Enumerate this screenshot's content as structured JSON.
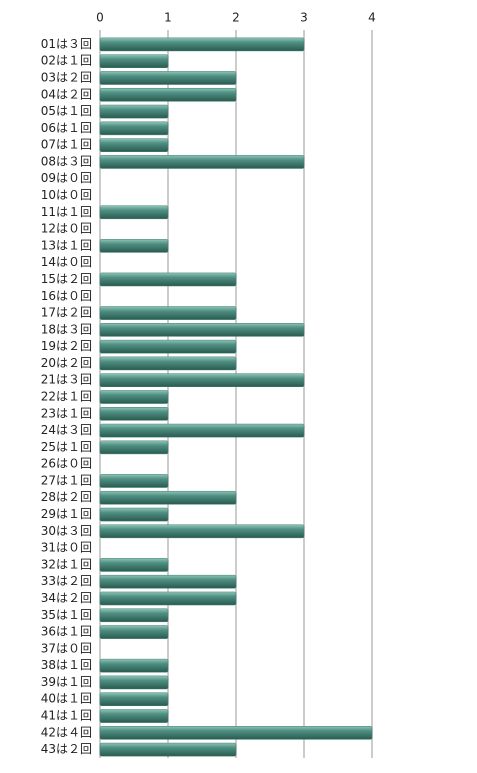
{
  "chart_data": {
    "type": "bar",
    "orientation": "horizontal",
    "categories": [
      "01は３回",
      "02は１回",
      "03は２回",
      "04は２回",
      "05は１回",
      "06は１回",
      "07は１回",
      "08は３回",
      "09は０回",
      "10は０回",
      "11は１回",
      "12は０回",
      "13は１回",
      "14は０回",
      "15は２回",
      "16は０回",
      "17は２回",
      "18は３回",
      "19は２回",
      "20は２回",
      "21は３回",
      "22は１回",
      "23は１回",
      "24は３回",
      "25は１回",
      "26は０回",
      "27は１回",
      "28は２回",
      "29は１回",
      "30は３回",
      "31は０回",
      "32は１回",
      "33は２回",
      "34は２回",
      "35は１回",
      "36は１回",
      "37は０回",
      "38は１回",
      "39は１回",
      "40は１回",
      "41は１回",
      "42は４回",
      "43は２回"
    ],
    "values": [
      3,
      1,
      2,
      2,
      1,
      1,
      1,
      3,
      0,
      0,
      1,
      0,
      1,
      0,
      2,
      0,
      2,
      3,
      2,
      2,
      3,
      1,
      1,
      3,
      1,
      0,
      1,
      2,
      1,
      3,
      0,
      1,
      2,
      2,
      1,
      1,
      0,
      1,
      1,
      1,
      1,
      4,
      2
    ],
    "color": "#3f7f73",
    "xlim": [
      0,
      4
    ],
    "xticks": [
      0,
      1,
      2,
      3,
      4
    ],
    "grid": true
  }
}
